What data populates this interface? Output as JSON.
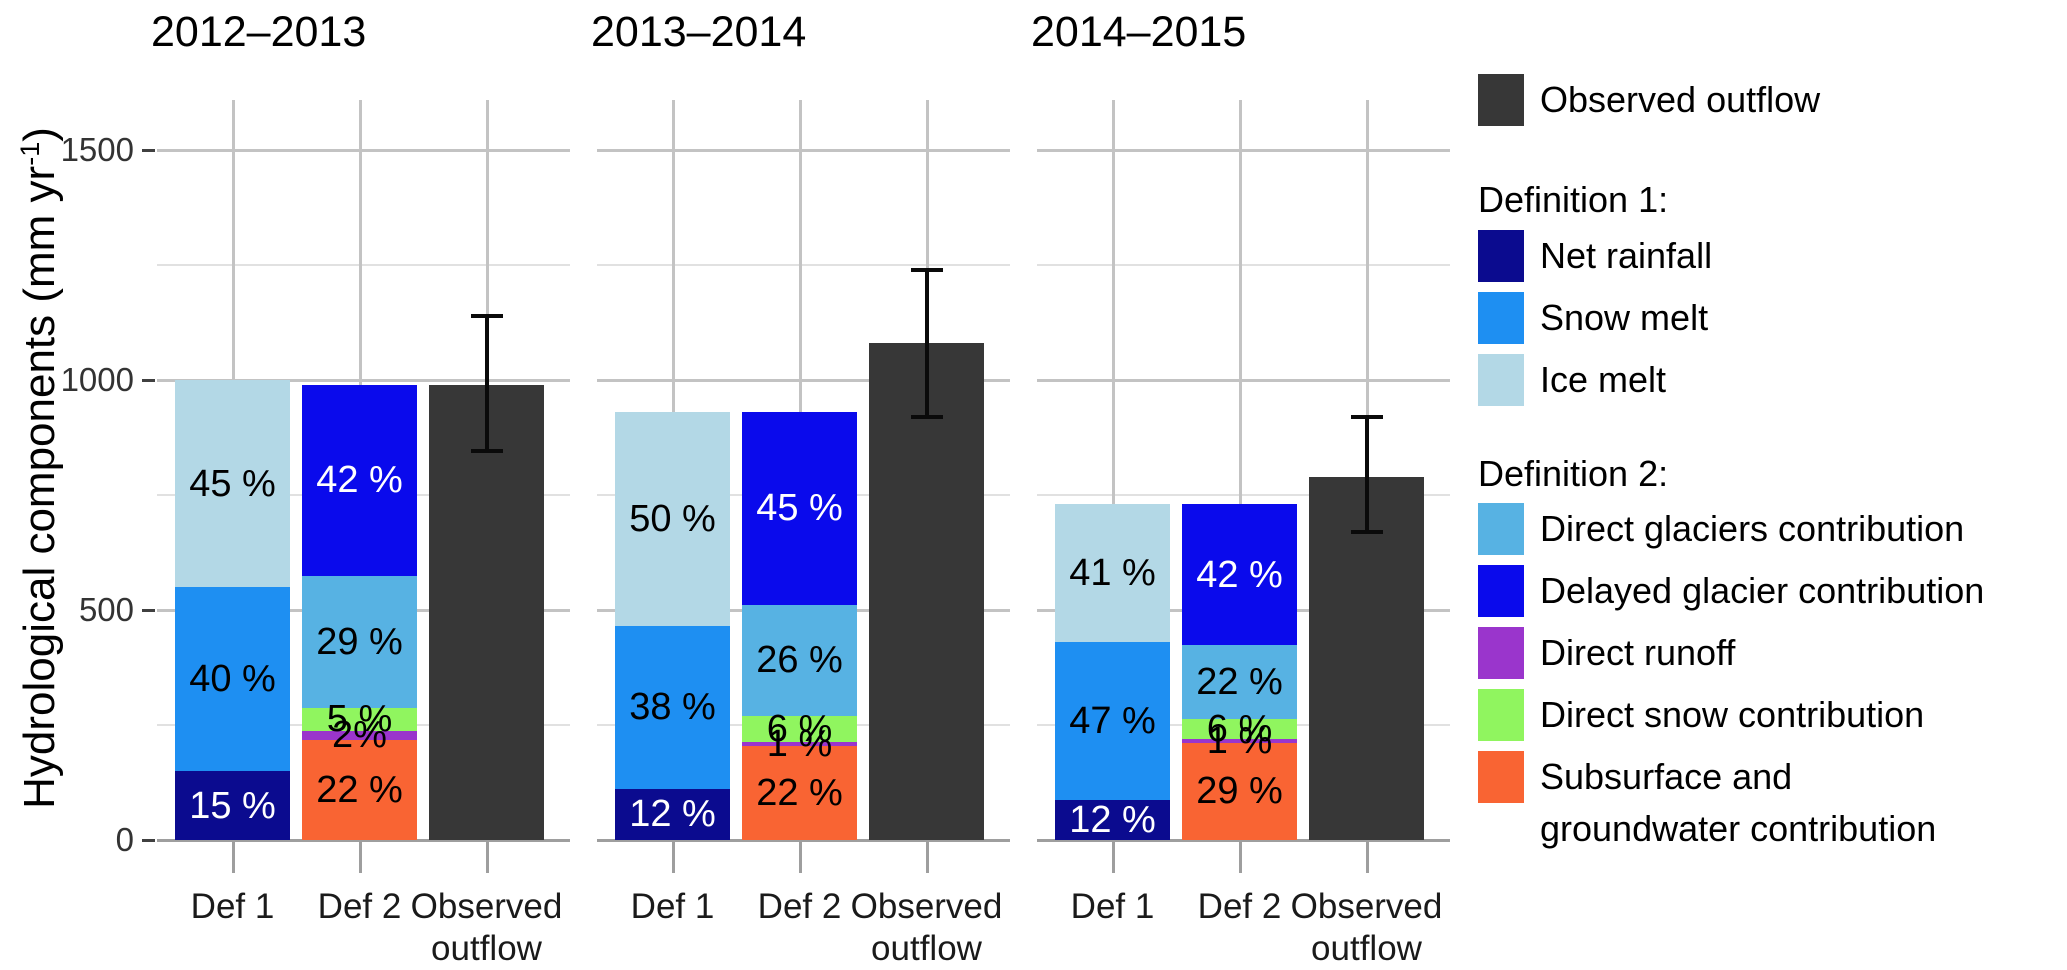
{
  "y_axis": {
    "title_main": "Hydrological components (mm yr",
    "title_sup": "-1",
    "title_close": ")"
  },
  "chart_data": {
    "type": "bar",
    "subtype": "grouped-stacked-with-observed-errorbars",
    "title": "",
    "xlabel": "",
    "ylabel": "Hydrological components (mm yr⁻¹)",
    "ylim": [
      0,
      1609
    ],
    "grid": true,
    "legend_position": "right",
    "y_ticks": [
      {
        "value": 0,
        "label": "0"
      },
      {
        "value": 500,
        "label": "500"
      },
      {
        "value": 1000,
        "label": "1000"
      },
      {
        "value": 1500,
        "label": "1500"
      }
    ],
    "y_major_gridlines": [
      500,
      1000,
      1500
    ],
    "y_minor_gridlines": [
      250,
      750,
      1250
    ],
    "baseline_value": 0,
    "x_tick_labels": [
      "Def 1",
      "Def 2",
      "Observed\noutflow"
    ],
    "colors": {
      "observed": "#373737",
      "net_rainfall": "#0B0B8F",
      "snow_melt": "#1E8FF2",
      "ice_melt": "#B3D8E6",
      "direct_glaciers": "#57B2E3",
      "delayed_glacier": "#0A0AEC",
      "direct_runoff": "#9A35CC",
      "direct_snow": "#90F55F",
      "subsurface_groundwater": "#F96433",
      "error_bar": "#0a0a0a"
    },
    "panels": [
      {
        "title": "2012–2013",
        "def1": {
          "name": "Def 1",
          "total": 1000,
          "segments": [
            {
              "component": "Net rainfall",
              "color_key": "net_rainfall",
              "pct": 15,
              "label": "15 %",
              "label_color": "#FFFFFF"
            },
            {
              "component": "Snow melt",
              "color_key": "snow_melt",
              "pct": 40,
              "label": "40 %",
              "label_color": "#000000"
            },
            {
              "component": "Ice melt",
              "color_key": "ice_melt",
              "pct": 45,
              "label": "45 %",
              "label_color": "#000000"
            }
          ]
        },
        "def2": {
          "name": "Def 2",
          "total": 990,
          "segments": [
            {
              "component": "Subsurface and groundwater contribution",
              "color_key": "subsurface_groundwater",
              "pct": 22,
              "label": "22 %",
              "label_color": "#000000"
            },
            {
              "component": "Direct runoff",
              "color_key": "direct_runoff",
              "pct": 2,
              "label": "2%",
              "label_color": "#000000"
            },
            {
              "component": "Direct snow contribution",
              "color_key": "direct_snow",
              "pct": 5,
              "label": "5 %",
              "label_color": "#000000"
            },
            {
              "component": "Direct glaciers contribution",
              "color_key": "direct_glaciers",
              "pct": 29,
              "label": "29 %",
              "label_color": "#000000"
            },
            {
              "component": "Delayed glacier contribution",
              "color_key": "delayed_glacier",
              "pct": 42,
              "label": "42 %",
              "label_color": "#FFFFFF"
            }
          ]
        },
        "observed": {
          "name": "Observed outflow",
          "value": 990,
          "error_low": 845,
          "error_high": 1140
        }
      },
      {
        "title": "2013–2014",
        "def1": {
          "name": "Def 1",
          "total": 930,
          "segments": [
            {
              "component": "Net rainfall",
              "color_key": "net_rainfall",
              "pct": 12,
              "label": "12 %",
              "label_color": "#FFFFFF"
            },
            {
              "component": "Snow melt",
              "color_key": "snow_melt",
              "pct": 38,
              "label": "38 %",
              "label_color": "#000000"
            },
            {
              "component": "Ice melt",
              "color_key": "ice_melt",
              "pct": 50,
              "label": "50 %",
              "label_color": "#000000"
            }
          ]
        },
        "def2": {
          "name": "Def 2",
          "total": 930,
          "segments": [
            {
              "component": "Subsurface and groundwater contribution",
              "color_key": "subsurface_groundwater",
              "pct": 22,
              "label": "22 %",
              "label_color": "#000000"
            },
            {
              "component": "Direct runoff",
              "color_key": "direct_runoff",
              "pct": 1,
              "label": "1 %",
              "label_color": "#000000"
            },
            {
              "component": "Direct snow contribution",
              "color_key": "direct_snow",
              "pct": 6,
              "label": "6 %",
              "label_color": "#000000"
            },
            {
              "component": "Direct glaciers contribution",
              "color_key": "direct_glaciers",
              "pct": 26,
              "label": "26 %",
              "label_color": "#000000"
            },
            {
              "component": "Delayed glacier contribution",
              "color_key": "delayed_glacier",
              "pct": 45,
              "label": "45 %",
              "label_color": "#FFFFFF"
            }
          ]
        },
        "observed": {
          "name": "Observed outflow",
          "value": 1080,
          "error_low": 920,
          "error_high": 1240
        }
      },
      {
        "title": "2014–2015",
        "def1": {
          "name": "Def 1",
          "total": 730,
          "segments": [
            {
              "component": "Net rainfall",
              "color_key": "net_rainfall",
              "pct": 12,
              "label": "12 %",
              "label_color": "#FFFFFF"
            },
            {
              "component": "Snow melt",
              "color_key": "snow_melt",
              "pct": 47,
              "label": "47 %",
              "label_color": "#000000"
            },
            {
              "component": "Ice melt",
              "color_key": "ice_melt",
              "pct": 41,
              "label": "41 %",
              "label_color": "#000000"
            }
          ]
        },
        "def2": {
          "name": "Def 2",
          "total": 730,
          "segments": [
            {
              "component": "Subsurface and groundwater contribution",
              "color_key": "subsurface_groundwater",
              "pct": 29,
              "label": "29 %",
              "label_color": "#000000"
            },
            {
              "component": "Direct runoff",
              "color_key": "direct_runoff",
              "pct": 1,
              "label": "1 %",
              "label_color": "#000000"
            },
            {
              "component": "Direct snow contribution",
              "color_key": "direct_snow",
              "pct": 6,
              "label": "6 %",
              "label_color": "#000000"
            },
            {
              "component": "Direct glaciers contribution",
              "color_key": "direct_glaciers",
              "pct": 22,
              "label": "22 %",
              "label_color": "#000000"
            },
            {
              "component": "Delayed glacier contribution",
              "color_key": "delayed_glacier",
              "pct": 42,
              "label": "42 %",
              "label_color": "#FFFFFF"
            }
          ]
        },
        "observed": {
          "name": "Observed outflow",
          "value": 790,
          "error_low": 670,
          "error_high": 920
        }
      }
    ]
  },
  "legend": {
    "observed": {
      "label": "Observed outflow",
      "color_key": "observed"
    },
    "sections": [
      {
        "header": "Definition 1:",
        "items": [
          {
            "label": "Net rainfall",
            "color_key": "net_rainfall"
          },
          {
            "label": "Snow melt",
            "color_key": "snow_melt"
          },
          {
            "label": "Ice melt",
            "color_key": "ice_melt"
          }
        ]
      },
      {
        "header": "Definition 2:",
        "items": [
          {
            "label": "Direct glaciers contribution",
            "color_key": "direct_glaciers"
          },
          {
            "label": "Delayed glacier contribution",
            "color_key": "delayed_glacier"
          },
          {
            "label": "Direct runoff",
            "color_key": "direct_runoff"
          },
          {
            "label": "Direct snow contribution",
            "color_key": "direct_snow"
          },
          {
            "label": "Subsurface and\ngroundwater contribution",
            "color_key": "subsurface_groundwater"
          }
        ]
      }
    ]
  }
}
